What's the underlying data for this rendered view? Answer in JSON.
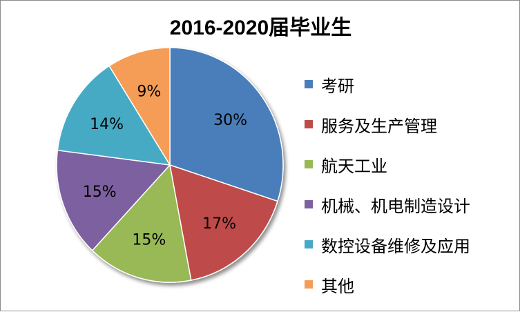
{
  "chart_data": {
    "type": "pie",
    "title": "2016-2020届毕业生",
    "legend_position": "right",
    "slices": [
      {
        "label": "考研",
        "value": 30,
        "value_label": "30%",
        "color": "#4a7ebb"
      },
      {
        "label": "服务及生产管理",
        "value": 17,
        "value_label": "17%",
        "color": "#be4b48"
      },
      {
        "label": "航天工业",
        "value": 15,
        "value_label": "15%",
        "color": "#98b954"
      },
      {
        "label": "机械、机电制造设计",
        "value": 15,
        "value_label": "15%",
        "color": "#7d60a0"
      },
      {
        "label": "数控设备维修及应用",
        "value": 14,
        "value_label": "14%",
        "color": "#46aac5"
      },
      {
        "label": "其他",
        "value": 9,
        "value_label": "9%",
        "color": "#f59d56"
      }
    ]
  }
}
